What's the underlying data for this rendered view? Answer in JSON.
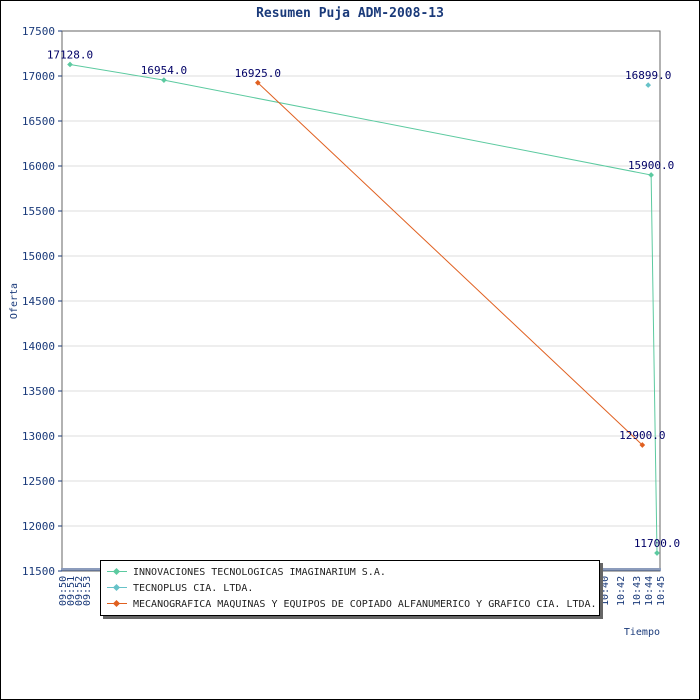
{
  "chart_data": {
    "type": "line",
    "title": "Resumen Puja ADM-2008-13",
    "xlabel": "Tiempo",
    "ylabel": "Oferta",
    "ylim": [
      11500,
      17500
    ],
    "yticks": [
      "11500",
      "12000",
      "12500",
      "13000",
      "13500",
      "14000",
      "14500",
      "15000",
      "15500",
      "16000",
      "16500",
      "17000",
      "17500"
    ],
    "xticks": [
      "09:50",
      "09:51",
      "09:52",
      "09:53",
      "10:40",
      "10:42",
      "10:43",
      "10:44",
      "10:45"
    ],
    "grid": true,
    "legend_position": "bottom",
    "series": [
      {
        "name": "INNOVACIONES TECNOLOGICAS IMAGINARIUM S.A.",
        "color": "#5ccaa0",
        "points": [
          {
            "t": 0.0,
            "y": 17128.0,
            "label": "17128.0"
          },
          {
            "t": 0.16,
            "y": 16954.0,
            "label": "16954.0"
          },
          {
            "t": 0.99,
            "y": 15900.0,
            "label": "15900.0"
          },
          {
            "t": 1.0,
            "y": 11700.0,
            "label": "11700.0"
          }
        ]
      },
      {
        "name": "TECNOPLUS CIA. LTDA.",
        "color": "#66c2c8",
        "points": [
          {
            "t": 0.985,
            "y": 16899.0,
            "label": "16899.0"
          }
        ]
      },
      {
        "name": "MECANOGRAFICA MAQUINAS Y EQUIPOS DE COPIADO ALFANUMERICO Y GRAFICO CIA. LTDA.",
        "color": "#e06020",
        "points": [
          {
            "t": 0.32,
            "y": 16925.0,
            "label": "16925.0"
          },
          {
            "t": 0.975,
            "y": 12900.0,
            "label": "12900.0"
          }
        ]
      }
    ]
  }
}
